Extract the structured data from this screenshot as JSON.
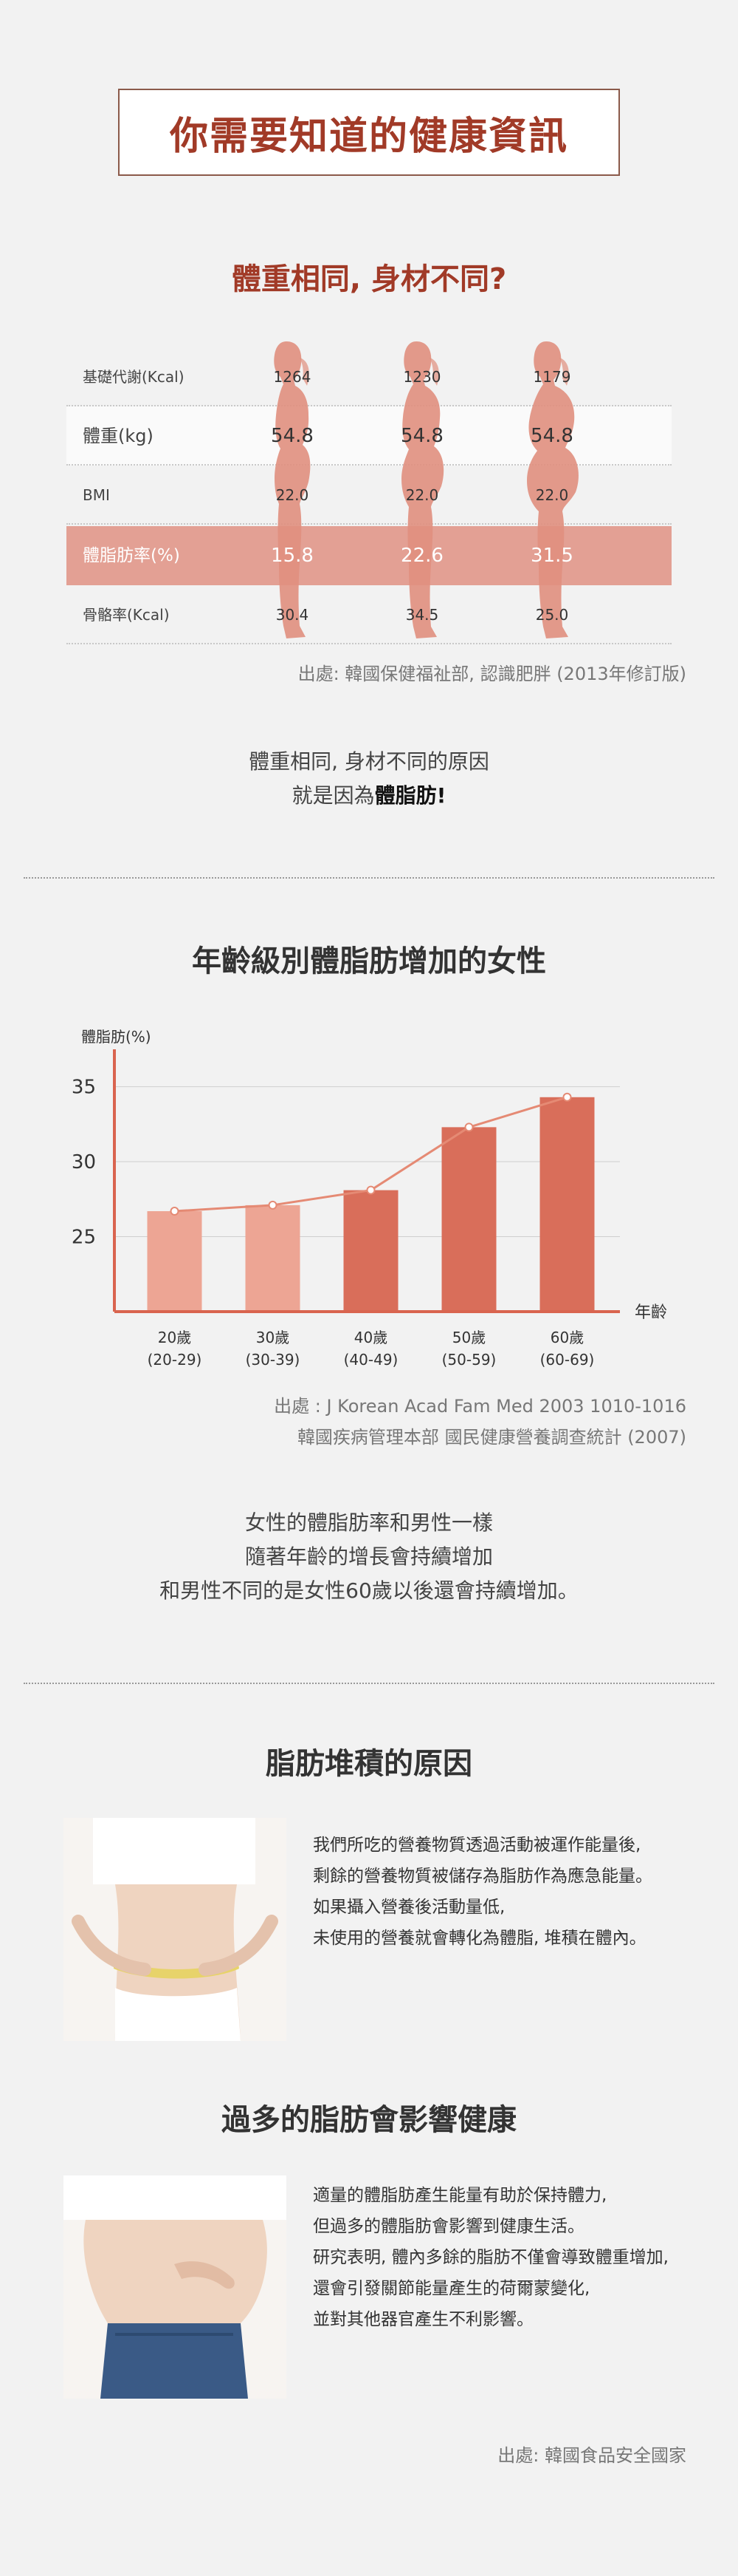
{
  "header": {
    "title": "你需要知道的健康資訊"
  },
  "section1": {
    "title": "體重相同, 身材不同?",
    "rows": [
      {
        "label": "基礎代謝(Kcal)",
        "values": [
          "1264",
          "1230",
          "1179"
        ]
      },
      {
        "label": "體重(kg)",
        "values": [
          "54.8",
          "54.8",
          "54.8"
        ]
      },
      {
        "label": "BMI",
        "values": [
          "22.0",
          "22.0",
          "22.0"
        ]
      },
      {
        "label": "體脂肪率(%)",
        "values": [
          "15.8",
          "22.6",
          "31.5"
        ]
      },
      {
        "label": "骨骼率(Kcal)",
        "values": [
          "30.4",
          "34.5",
          "25.0"
        ]
      }
    ],
    "source": "出處: 韓國保健福祉部, 認識肥胖 (2013年修訂版)",
    "conclusion_line1": "體重相同, 身材不同的原因",
    "conclusion_prefix": "就是因為",
    "conclusion_bold": "體脂肪",
    "conclusion_suffix": "!"
  },
  "section2": {
    "title": "年齡級別體脂肪增加的女性",
    "source_line1": "出處 : J Korean Acad Fam Med 2003 1010-1016",
    "source_line2": "韓國疾病管理本部 國民健康營養調查統計 (2007)",
    "text_line1": "女性的體脂肪率和男性一樣",
    "text_line2": "隨著年齡的增長會持續增加",
    "text_line3": "和男性不同的是女性60歲以後還會持續增加。"
  },
  "chart_data": {
    "type": "bar",
    "ylabel": "體脂肪(%)",
    "xlabel": "年齡",
    "categories": [
      "20歲",
      "30歲",
      "40歲",
      "50歲",
      "60歲"
    ],
    "category_sublabels": [
      "(20-29)",
      "(30-39)",
      "(40-49)",
      "(50-59)",
      "(60-69)"
    ],
    "values": [
      26.7,
      27.1,
      28.1,
      32.3,
      34.3
    ],
    "yticks": [
      25,
      30,
      35
    ],
    "ylim": [
      20,
      37
    ],
    "grid": true,
    "colors": [
      "#eda594",
      "#eda594",
      "#d96e5a",
      "#d96e5a",
      "#d96e5a"
    ],
    "line_color": "#e58a74"
  },
  "section3": {
    "title": "脂肪堆積的原因",
    "lines": [
      "我們所吃的營養物質透過活動被運作能量後,",
      "剩餘的營養物質被儲存為脂肪作為應急能量。",
      "如果攝入營養後活動量低,",
      "未使用的營養就會轉化為體脂, 堆積在體內。"
    ]
  },
  "section4": {
    "title": "過多的脂肪會影響健康",
    "lines": [
      "適量的體脂肪產生能量有助於保持體力,",
      "但過多的體脂肪會影響到健康生活。",
      "研究表明, 體內多餘的脂肪不僅會導致體重增加,",
      "還會引發關節能量產生的荷爾蒙變化,",
      "並對其他器官產生不利影響。"
    ],
    "source": "出處: 韓國食品安全國家"
  },
  "colors": {
    "accent": "#a13a27",
    "figure": "#e08f7e",
    "highlight": "#e3a094"
  }
}
